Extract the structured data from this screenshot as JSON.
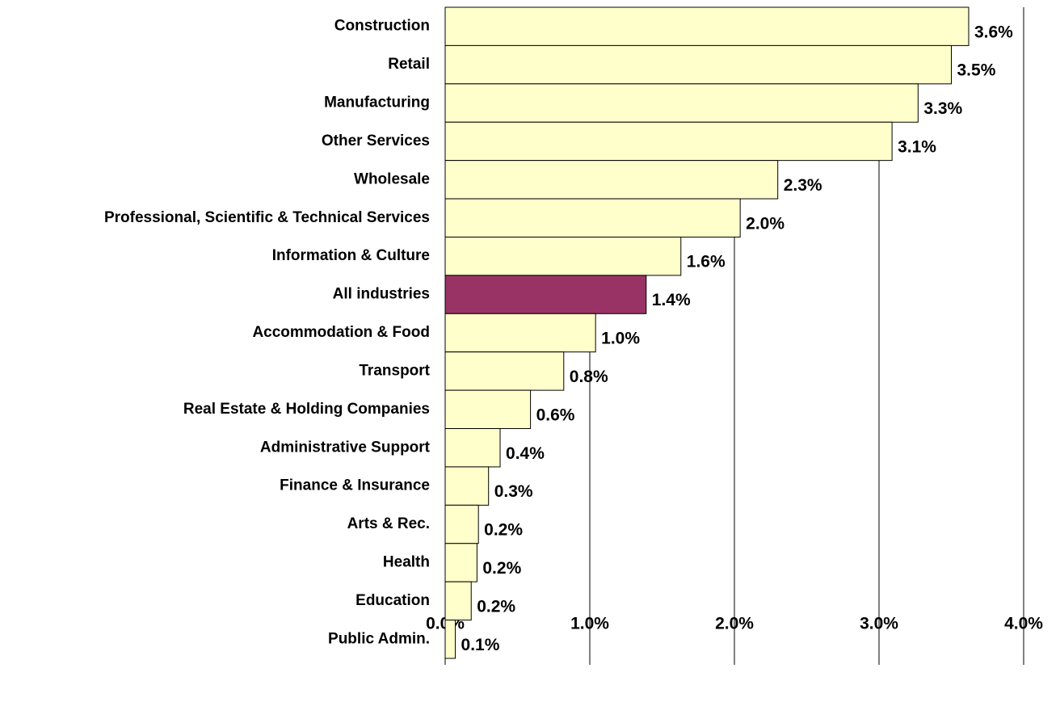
{
  "chart_data": {
    "type": "hbar",
    "categories": [
      "Construction",
      "Retail",
      "Manufacturing",
      "Other Services",
      "Wholesale",
      "Professional, Scientific & Technical Services",
      "Information & Culture",
      "All industries",
      "Accommodation & Food ",
      "Transport",
      "Real Estate & Holding Companies",
      "Administrative Support",
      "Finance & Insurance",
      "Arts & Rec.",
      "Health",
      "Education",
      "Public Admin."
    ],
    "values": [
      3.62,
      3.5,
      3.27,
      3.09,
      2.3,
      2.04,
      1.63,
      1.39,
      1.04,
      0.82,
      0.59,
      0.38,
      0.3,
      0.23,
      0.22,
      0.18,
      0.07
    ],
    "value_labels": [
      "3.6%",
      "3.5%",
      "3.3%",
      "3.1%",
      "2.3%",
      "2.0%",
      "1.6%",
      "1.4%",
      "1.0%",
      "0.8%",
      "0.6%",
      "0.4%",
      "0.3%",
      "0.2%",
      "0.2%",
      "0.2%",
      "0.1%"
    ],
    "colors": [
      "#ffffcc",
      "#ffffcc",
      "#ffffcc",
      "#ffffcc",
      "#ffffcc",
      "#ffffcc",
      "#ffffcc",
      "#993366",
      "#ffffcc",
      "#ffffcc",
      "#ffffcc",
      "#ffffcc",
      "#ffffcc",
      "#ffffcc",
      "#ffffcc",
      "#ffffcc",
      "#ffffcc"
    ],
    "xlim": [
      0,
      4
    ],
    "xticks": [
      {
        "value": 0,
        "label": "0.0%"
      },
      {
        "value": 1,
        "label": "1.0%"
      },
      {
        "value": 2,
        "label": "2.0%"
      },
      {
        "value": 3,
        "label": "3.0%"
      },
      {
        "value": 4,
        "label": "4.0%"
      }
    ],
    "grid": true
  }
}
